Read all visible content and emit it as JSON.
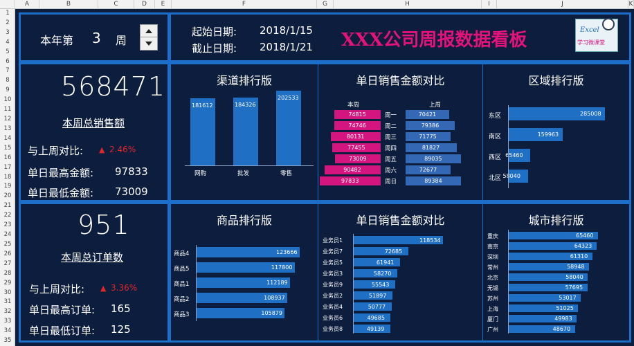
{
  "colors": {
    "background": "#0d1d3d",
    "border": "#1c6ec8",
    "bar": "#1f6fc5",
    "pink": "#d4147f",
    "up_red": "#e0262b",
    "title_pink": "#e3137a"
  },
  "sheet": {
    "columns": [
      "A",
      "B",
      "C",
      "D",
      "E",
      "F",
      "G",
      "H",
      "I",
      "J",
      "K"
    ],
    "rows": [
      "1",
      "2",
      "3",
      "4",
      "5",
      "6",
      "7",
      "8",
      "9",
      "10",
      "11",
      "12",
      "13",
      "14",
      "15",
      "16",
      "17",
      "18",
      "19",
      "20",
      "21",
      "22",
      "23",
      "24",
      "25",
      "26",
      "27",
      "28",
      "29",
      "30",
      "31",
      "32",
      "33",
      "34",
      "35"
    ]
  },
  "header": {
    "week_prefix": "本年第",
    "week_number": "3",
    "week_suffix": "周",
    "start_label": "起始日期:",
    "start_date": "2018/1/15",
    "end_label": "截止日期:",
    "end_date": "2018/1/21",
    "title": "XXX公司周报数据看板",
    "logo_text": "Excel",
    "logo_sub": "学习微课堂"
  },
  "sales_summary": {
    "total": "568471",
    "total_label": "本周总销售额",
    "compare_label": "与上周对比:",
    "compare_value": "2.46%",
    "max_label": "单日最高金额:",
    "max_value": "97833",
    "min_label": "单日最低金额:",
    "min_value": "73009"
  },
  "order_summary": {
    "total": "951",
    "total_label": "本周总订单数",
    "compare_label": "与上周对比:",
    "compare_value": "3.36%",
    "max_label": "单日最高订单:",
    "max_value": "165",
    "min_label": "单日最低订单:",
    "min_value": "125"
  },
  "up_arrow": "▲",
  "chart_data": [
    {
      "type": "bar",
      "title": "渠道排行版",
      "categories": [
        "网购",
        "批发",
        "零售"
      ],
      "values": [
        181612,
        184326,
        202533
      ]
    },
    {
      "type": "bar",
      "title": "单日销售金额对比",
      "legend_left": "本周",
      "legend_right": "上周",
      "categories": [
        "周一",
        "周二",
        "周三",
        "周四",
        "周五",
        "周六",
        "周日"
      ],
      "series": [
        {
          "name": "本周",
          "values": [
            74815,
            74746,
            80131,
            77455,
            73009,
            90482,
            97833
          ]
        },
        {
          "name": "上周",
          "values": [
            70421,
            79386,
            71775,
            81827,
            89035,
            72677,
            89384
          ]
        }
      ]
    },
    {
      "type": "bar",
      "title": "区域排行版",
      "categories": [
        "东区",
        "南区",
        "西区",
        "北区"
      ],
      "values": [
        285008,
        159963,
        65460,
        58040
      ]
    },
    {
      "type": "bar",
      "title": "商品排行版",
      "categories": [
        "商品4",
        "商品5",
        "商品1",
        "商品2",
        "商品3"
      ],
      "values": [
        123666,
        117800,
        112189,
        108937,
        105879
      ]
    },
    {
      "type": "bar",
      "title": "单日销售金额对比",
      "categories": [
        "业务员1",
        "业务员7",
        "业务员5",
        "业务员3",
        "业务员9",
        "业务员2",
        "业务员4",
        "业务员6",
        "业务员8"
      ],
      "values": [
        118534,
        72685,
        61941,
        58270,
        55543,
        51897,
        50777,
        49685,
        49139
      ]
    },
    {
      "type": "bar",
      "title": "城市排行版",
      "categories": [
        "重庆",
        "南京",
        "深圳",
        "常州",
        "北京",
        "无锡",
        "苏州",
        "上海",
        "厦门",
        "广州"
      ],
      "values": [
        65460,
        64323,
        61310,
        58948,
        58040,
        57695,
        53017,
        51025,
        49983,
        48670
      ]
    }
  ]
}
